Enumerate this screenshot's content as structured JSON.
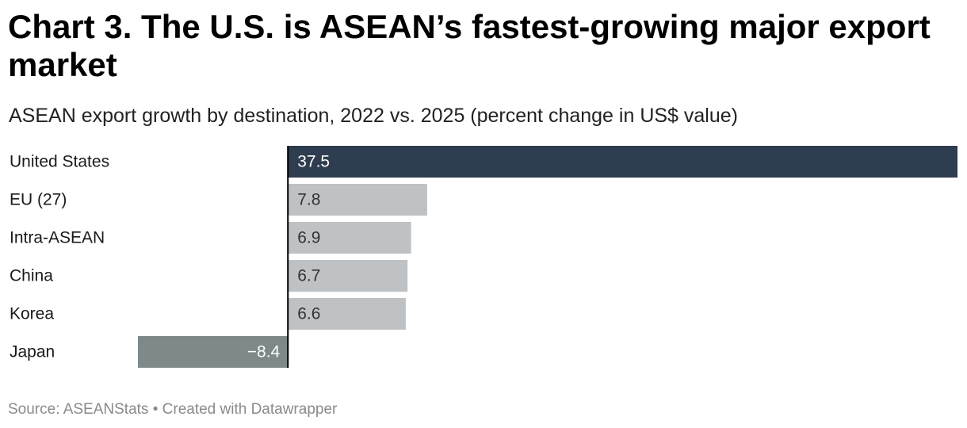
{
  "header": {
    "title": "Chart 3. The U.S. is ASEAN’s fastest-growing major export market",
    "subtitle": "ASEAN export growth by destination, 2022 vs. 2025 (percent change in US$ value)"
  },
  "footer": {
    "source": "Source: ASEANStats",
    "separator": "•",
    "credit": "Created with Datawrapper"
  },
  "chart_data": {
    "type": "bar",
    "orientation": "horizontal",
    "categories": [
      "United States",
      "EU (27)",
      "Intra-ASEAN",
      "China",
      "Korea",
      "Japan"
    ],
    "values": [
      37.5,
      7.8,
      6.9,
      6.7,
      6.6,
      -8.4
    ],
    "value_labels": [
      "37.5",
      "7.8",
      "6.9",
      "6.7",
      "6.6",
      "−8.4"
    ],
    "xlim": [
      -8.4,
      37.5
    ],
    "bar_colors": [
      "#2e3d4f",
      "#bfc2c4",
      "#bfc2c4",
      "#bfc2c4",
      "#bfc2c4",
      "#7d8a89"
    ],
    "label_colors": [
      "#ffffff",
      "#333333",
      "#333333",
      "#333333",
      "#333333",
      "#ffffff"
    ],
    "baseline_color": "#000000",
    "grid": false,
    "legend": "none"
  }
}
